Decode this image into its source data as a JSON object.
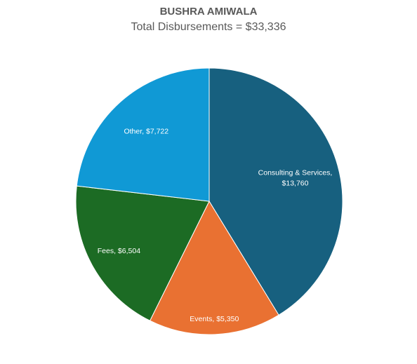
{
  "chart_data": {
    "type": "pie",
    "title": "BUSHRA AMIWALA",
    "subtitle": "Total Disbursements = $33,336",
    "slices": [
      {
        "name": "Consulting & Services",
        "value": 13760,
        "label_line1": "Consulting & Services,",
        "label_line2": "$13,760",
        "color": "#17607f"
      },
      {
        "name": "Events",
        "value": 5350,
        "label_line1": "Events, $5,350",
        "label_line2": "",
        "color": "#e97132"
      },
      {
        "name": "Fees",
        "value": 6504,
        "label_line1": "Fees, $6,504",
        "label_line2": "",
        "color": "#1c6b24"
      },
      {
        "name": "Other",
        "value": 7722,
        "label_line1": "Other, $7,722",
        "label_line2": "",
        "color": "#1099d5"
      }
    ]
  }
}
